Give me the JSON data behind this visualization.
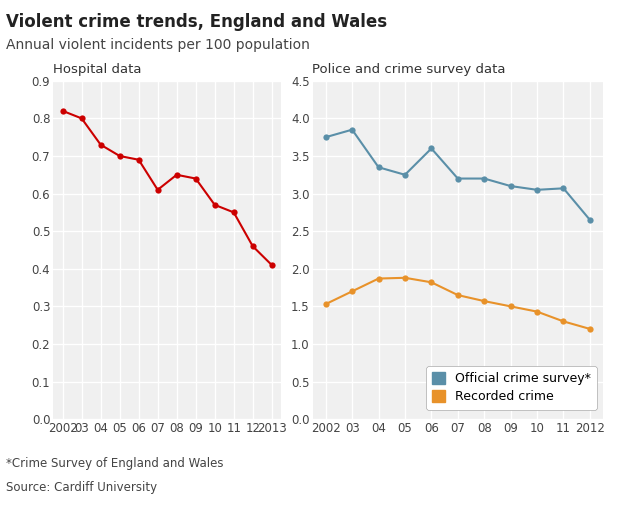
{
  "title": "Violent crime trends, England and Wales",
  "subtitle": "Annual violent incidents per 100 population",
  "left_panel_title": "Hospital data",
  "right_panel_title": "Police and crime survey data",
  "footnote1": "*Crime Survey of England and Wales",
  "footnote2": "Source: Cardiff University",
  "hospital_years": [
    2002,
    2003,
    2004,
    2005,
    2006,
    2007,
    2008,
    2009,
    2010,
    2011,
    2012,
    2013
  ],
  "hospital_values": [
    0.82,
    0.8,
    0.73,
    0.7,
    0.69,
    0.61,
    0.65,
    0.64,
    0.57,
    0.55,
    0.46,
    0.41
  ],
  "hospital_color": "#cc0000",
  "survey_years": [
    2002,
    2003,
    2004,
    2005,
    2006,
    2007,
    2008,
    2009,
    2010,
    2011,
    2012
  ],
  "survey_values": [
    3.75,
    3.85,
    3.35,
    3.25,
    3.6,
    3.2,
    3.2,
    3.1,
    3.05,
    3.07,
    2.65
  ],
  "survey_color": "#5a8fa8",
  "survey_label": "Official crime survey*",
  "recorded_years": [
    2002,
    2003,
    2004,
    2005,
    2006,
    2007,
    2008,
    2009,
    2010,
    2011,
    2012
  ],
  "recorded_values": [
    1.53,
    1.7,
    1.87,
    1.88,
    1.82,
    1.65,
    1.57,
    1.5,
    1.43,
    1.3,
    1.2
  ],
  "recorded_color": "#e8922a",
  "recorded_label": "Recorded crime",
  "left_ylim": [
    0,
    0.9
  ],
  "left_yticks": [
    0,
    0.1,
    0.2,
    0.3,
    0.4,
    0.5,
    0.6,
    0.7,
    0.8,
    0.9
  ],
  "right_ylim": [
    0,
    4.5
  ],
  "right_yticks": [
    0,
    0.5,
    1.0,
    1.5,
    2.0,
    2.5,
    3.0,
    3.5,
    4.0,
    4.5
  ],
  "bg_color": "#ffffff",
  "plot_bg_color": "#f0f0f0",
  "grid_color": "#ffffff",
  "marker": "o",
  "marker_size": 4.5,
  "line_width": 1.5,
  "title_fontsize": 12,
  "subtitle_fontsize": 10,
  "panel_title_fontsize": 9.5,
  "tick_fontsize": 8.5,
  "legend_fontsize": 9,
  "footnote_fontsize": 8.5
}
